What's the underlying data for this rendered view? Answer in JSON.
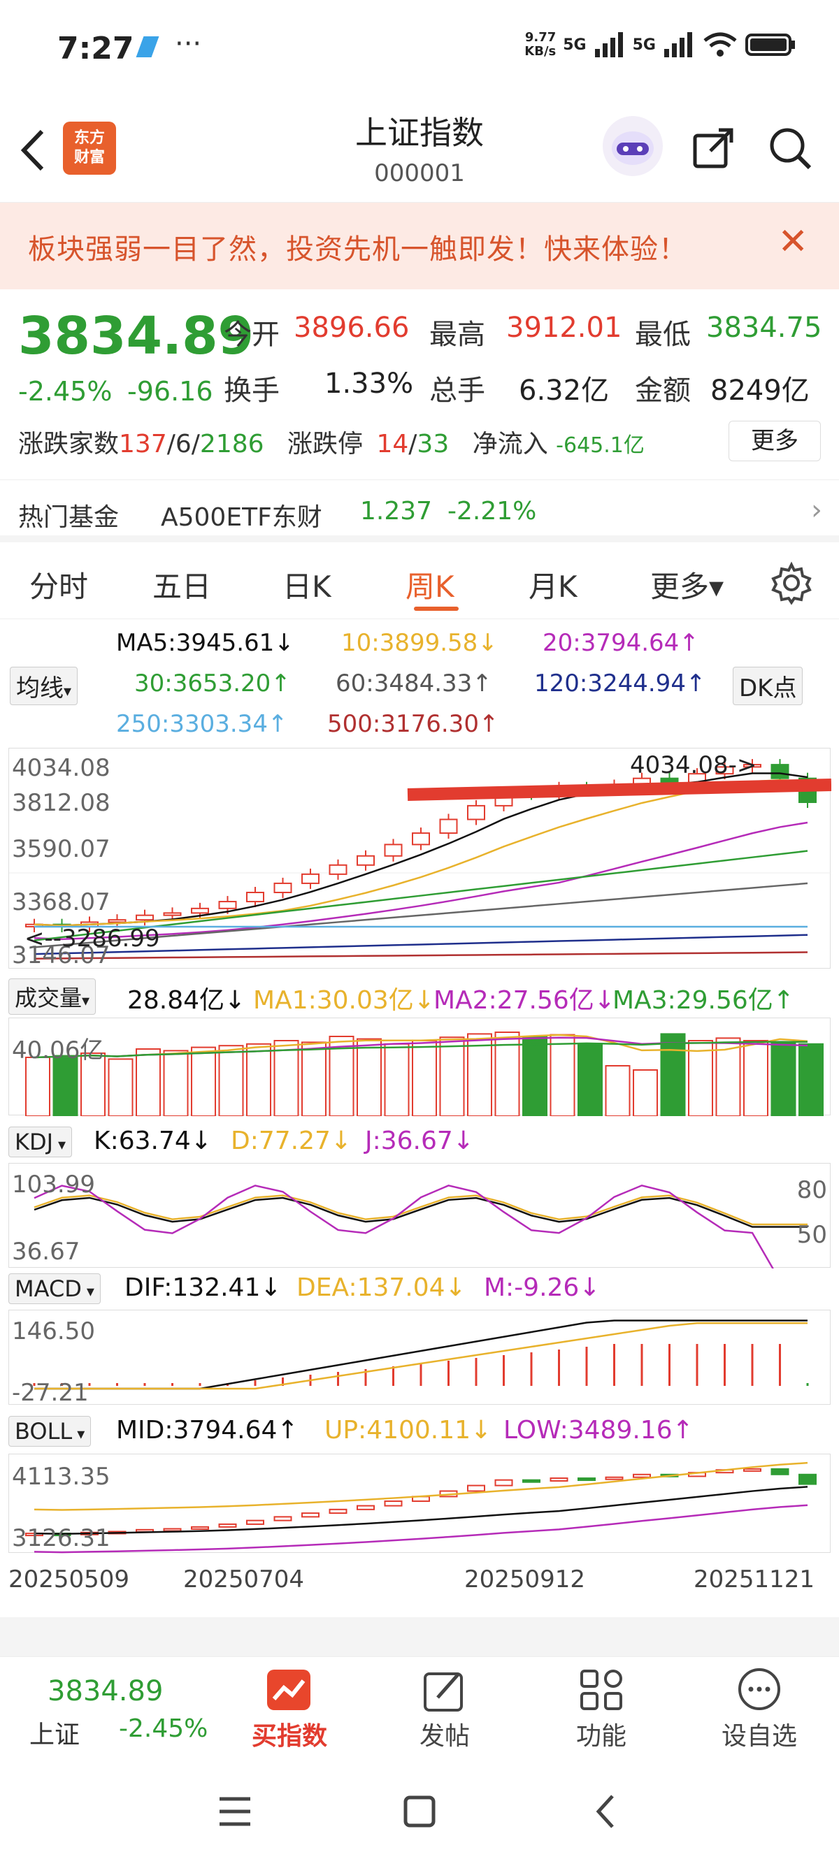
{
  "status": {
    "time": "7:27",
    "speed": "9.77\nKB/s",
    "network": "5G"
  },
  "header": {
    "title": "上证指数",
    "code": "000001",
    "logo": "东方\n财富"
  },
  "banner": {
    "text": "板块强弱一目了然，投资先机一触即发！快来体验！"
  },
  "quote": {
    "price": "3834.89",
    "change_pct": "-2.45%",
    "change_abs": "-96.16",
    "open_label": "今开",
    "open": "3896.66",
    "high_label": "最高",
    "high": "3912.01",
    "low_label": "最低",
    "low": "3834.75",
    "turnover_label": "换手",
    "turnover": "1.33%",
    "volume_label": "总手",
    "volume": "6.32亿",
    "amount_label": "金额",
    "amount": "8249亿",
    "breadth_label": "涨跌家数",
    "up": "137",
    "flat": "6",
    "down": "2186",
    "limit_label": "涨跌停",
    "limit_up": "14",
    "limit_down": "33",
    "inflow_label": "净流入",
    "inflow": "-645.1亿",
    "more": "更多"
  },
  "fund": {
    "label": "热门基金",
    "name": "A500ETF东财",
    "price": "1.237",
    "pct": "-2.21%"
  },
  "tabs": [
    "分时",
    "五日",
    "日K",
    "周K",
    "月K",
    "更多▾"
  ],
  "ma_legend": {
    "selector": "均线",
    "ma5": "MA5:3945.61↓",
    "ma10": "10:3899.58↓",
    "ma20": "20:3794.64↑",
    "ma30": "30:3653.20↑",
    "ma60": "60:3484.33↑",
    "ma120": "120:3244.94↑",
    "ma250": "250:3303.34↑",
    "ma500": "500:3176.30↑",
    "dk": "DK点"
  },
  "kline": {
    "y_labels": [
      "4034.08",
      "3812.08",
      "3590.07",
      "3368.07",
      "3146.07"
    ],
    "high_marker": "4034.08->",
    "low_marker": "<--3286.99",
    "colors": {
      "up": "#e23c2f",
      "down": "#2f9d34",
      "ma5": "#111111",
      "ma10": "#e8b22c",
      "ma20": "#b52bb8",
      "ma30": "#2f9d34",
      "ma60": "#666666",
      "ma120": "#1f2f8c",
      "ma250": "#5aaee0",
      "ma500": "#b03030"
    }
  },
  "volume": {
    "selector": "成交量",
    "value": "28.84亿↓",
    "ma1": "MA1:30.03亿↓",
    "ma2": "MA2:27.56亿↓",
    "ma3": "MA3:29.56亿↑",
    "y_label": "40.06亿"
  },
  "kdj": {
    "selector": "KDJ",
    "k": "K:63.74↓",
    "d": "D:77.27↓",
    "j": "J:36.67↓",
    "y_top": "103.99",
    "y_bottom": "36.67",
    "ref80": "80",
    "ref50": "50"
  },
  "macd": {
    "selector": "MACD",
    "dif": "DIF:132.41↓",
    "dea": "DEA:137.04↓",
    "m": "M:-9.26↓",
    "y_top": "146.50",
    "y_bottom": "-27.21"
  },
  "boll": {
    "selector": "BOLL",
    "mid": "MID:3794.64↑",
    "up": "UP:4100.11↓",
    "low": "LOW:3489.16↑",
    "y_top": "4113.35",
    "y_bottom": "3126.31"
  },
  "x_dates": [
    "20250509",
    "20250704",
    "20250912",
    "20251121"
  ],
  "bottom_nav": {
    "index_price": "3834.89",
    "index_name": "上证",
    "index_pct": "-2.45%",
    "buy": "买指数",
    "post": "发帖",
    "func": "功能",
    "watch": "设自选"
  }
}
